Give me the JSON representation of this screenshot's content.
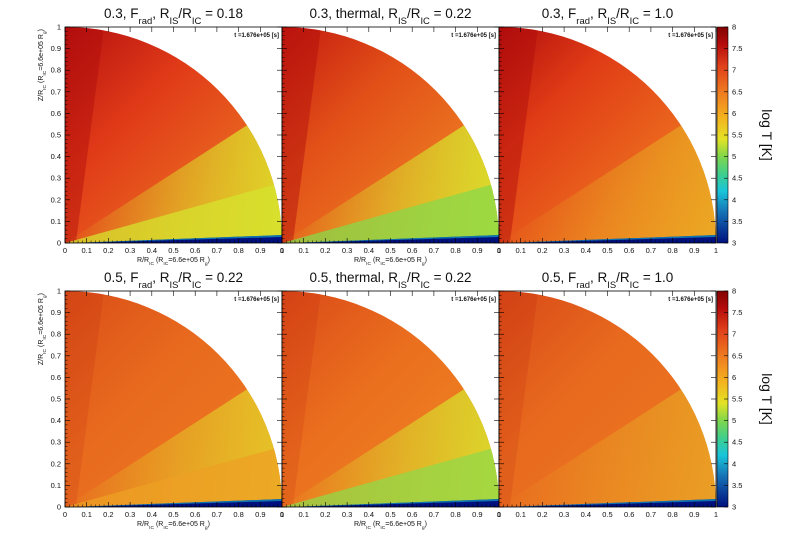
{
  "chart_data": {
    "type": "heatmap",
    "grid_layout": "2 rows x 3 columns",
    "colormap": "rainbow (dark blue - cyan - green - yellow - orange - red - dark red)",
    "panels": [
      {
        "title_prefix": "0.3, ",
        "F_main": "F",
        "F_sub": "rad",
        "F_sep": ", ",
        "method": "",
        "ratio_main1": "R",
        "ratio_sub1": "IS",
        "ratio_mid": "/R",
        "ratio_sub2": "IC",
        "ratio_value": " = 0.18",
        "time": "t =1.676e+05 [s]"
      },
      {
        "title_prefix": "0.3, ",
        "F_main": "",
        "F_sub": "",
        "F_sep": "",
        "method": "thermal, ",
        "ratio_main1": "R",
        "ratio_sub1": "IS",
        "ratio_mid": "/R",
        "ratio_sub2": "IC",
        "ratio_value": " = 0.22",
        "time": "t =1.676e+05 [s]"
      },
      {
        "title_prefix": "0.3, ",
        "F_main": "F",
        "F_sub": "rad",
        "F_sep": ", ",
        "method": "",
        "ratio_main1": "R",
        "ratio_sub1": "IS",
        "ratio_mid": "/R",
        "ratio_sub2": "IC",
        "ratio_value": " = 1.0",
        "time": "t =1.676e+05 [s]"
      },
      {
        "title_prefix": "0.5, ",
        "F_main": "F",
        "F_sub": "rad",
        "F_sep": ", ",
        "method": "",
        "ratio_main1": "R",
        "ratio_sub1": "IS",
        "ratio_mid": "/R",
        "ratio_sub2": "IC",
        "ratio_value": " = 0.22",
        "time": "t =1.676e+05 [s]"
      },
      {
        "title_prefix": "0.5, ",
        "F_main": "",
        "F_sub": "",
        "F_sep": "",
        "method": "thermal, ",
        "ratio_main1": "R",
        "ratio_sub1": "IS",
        "ratio_mid": "/R",
        "ratio_sub2": "IC",
        "ratio_value": " = 0.22",
        "time": "t =1.676e+05 [s]"
      },
      {
        "title_prefix": "0.5, ",
        "F_main": "F",
        "F_sub": "rad",
        "F_sep": ", ",
        "method": "",
        "ratio_main1": "R",
        "ratio_sub1": "IS",
        "ratio_mid": "/R",
        "ratio_sub2": "IC",
        "ratio_value": " = 1.0",
        "time": "t =1.676e+05 [s]"
      }
    ],
    "x_axis": {
      "range": [
        0,
        1
      ],
      "ticks": [
        0,
        0.1,
        0.2,
        0.3,
        0.4,
        0.5,
        0.6,
        0.7,
        0.8,
        0.9,
        1
      ],
      "tick_labels": [
        "0",
        "0.1",
        "0.2",
        "0.3",
        "0.4",
        "0.5",
        "0.6",
        "0.7",
        "0.8",
        "0.9",
        "1"
      ],
      "label_prefix": "R/R",
      "label_sub": "IC",
      "label_paren": " (R",
      "label_paren_sub": "IC",
      "label_value": "=6.6e+05 R",
      "label_value_sub": "g",
      "label_close": ")"
    },
    "y_axis": {
      "range": [
        0,
        1
      ],
      "ticks": [
        0,
        0.1,
        0.2,
        0.3,
        0.4,
        0.5,
        0.6,
        0.7,
        0.8,
        0.9,
        1
      ],
      "tick_labels": [
        "0",
        "0.1",
        "0.2",
        "0.3",
        "0.4",
        "0.5",
        "0.6",
        "0.7",
        "0.8",
        "0.9",
        "1"
      ],
      "label_prefix": "Z/R",
      "label_sub": "IC",
      "label_paren": " (R",
      "label_paren_sub": "IC",
      "label_value": "=6.6e+05 R",
      "label_value_sub": "g",
      "label_close": ")"
    },
    "colorbar": {
      "title": "log T [K]",
      "range": [
        3,
        8
      ],
      "ticks": [
        3,
        3.5,
        4,
        4.5,
        5,
        5.5,
        6,
        6.5,
        7,
        7.5,
        8
      ],
      "tick_labels": [
        "3",
        "3.5",
        "4",
        "4.5",
        "5",
        "5.5",
        "6",
        "6.5",
        "7",
        "7.5",
        "8"
      ]
    },
    "colors": {
      "dark_blue": "#00107e",
      "cyan": "#19c5d9",
      "green": "#7fd64c",
      "yellow": "#e3e326",
      "orange": "#ef7a20",
      "red": "#e0401a",
      "dark_red": "#820202"
    }
  }
}
